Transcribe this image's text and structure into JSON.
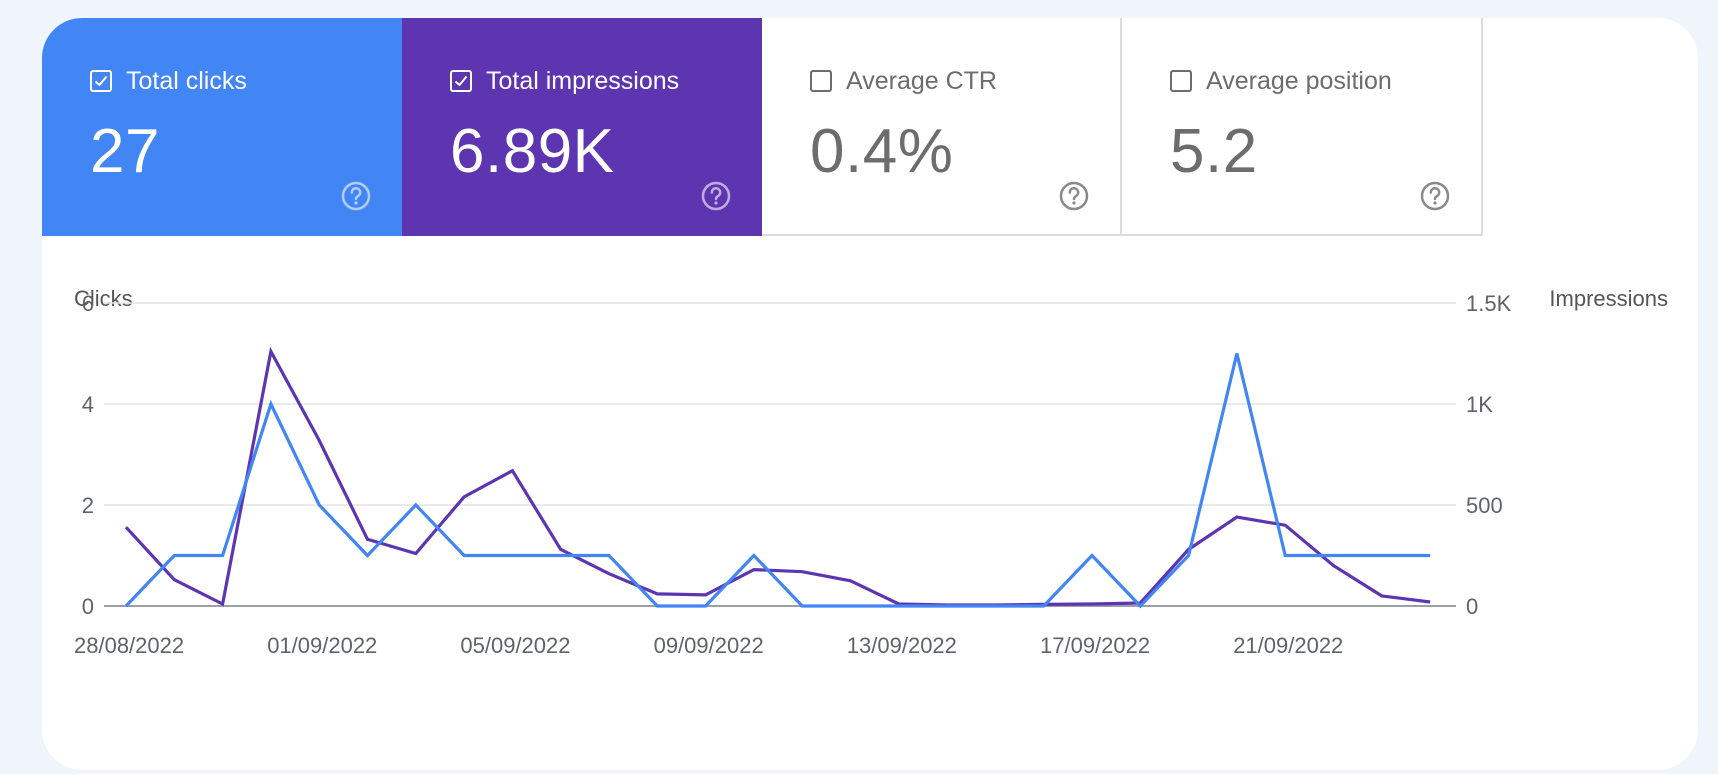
{
  "cards": [
    {
      "label": "Total clicks",
      "value": "27",
      "checked": true,
      "color": "#4285f4"
    },
    {
      "label": "Total impressions",
      "value": "6.89K",
      "checked": true,
      "color": "#5e35b1"
    },
    {
      "label": "Average CTR",
      "value": "0.4%",
      "checked": false,
      "color": "#ffffff"
    },
    {
      "label": "Average position",
      "value": "5.2",
      "checked": false,
      "color": "#ffffff"
    }
  ],
  "chart_data": {
    "type": "line",
    "left_axis_title": "Clicks",
    "right_axis_title": "Impressions",
    "left_ticks": [
      "0",
      "2",
      "4",
      "6"
    ],
    "right_ticks": [
      "0",
      "500",
      "1K",
      "1.5K"
    ],
    "ylim_left": [
      0,
      6
    ],
    "ylim_right": [
      0,
      1500
    ],
    "x_tick_labels": [
      "28/08/2022",
      "01/09/2022",
      "05/09/2022",
      "09/09/2022",
      "13/09/2022",
      "17/09/2022",
      "21/09/2022"
    ],
    "x": [
      "28/08/2022",
      "29/08/2022",
      "30/08/2022",
      "31/08/2022",
      "01/09/2022",
      "02/09/2022",
      "03/09/2022",
      "04/09/2022",
      "05/09/2022",
      "06/09/2022",
      "07/09/2022",
      "08/09/2022",
      "09/09/2022",
      "10/09/2022",
      "11/09/2022",
      "12/09/2022",
      "13/09/2022",
      "14/09/2022",
      "15/09/2022",
      "16/09/2022",
      "17/09/2022",
      "18/09/2022",
      "19/09/2022",
      "20/09/2022",
      "21/09/2022",
      "22/09/2022",
      "23/09/2022",
      "24/09/2022"
    ],
    "series": [
      {
        "name": "Clicks",
        "axis": "left",
        "color": "#4285f4",
        "values": [
          0,
          1,
          1,
          4,
          2,
          1,
          2,
          1,
          1,
          1,
          1,
          0,
          0,
          1,
          0,
          0,
          0,
          0,
          0,
          0,
          1,
          0,
          1,
          5,
          1,
          1,
          1,
          1
        ]
      },
      {
        "name": "Impressions",
        "axis": "right",
        "color": "#5e35b1",
        "values": [
          390,
          130,
          10,
          1260,
          820,
          330,
          260,
          540,
          670,
          280,
          160,
          60,
          55,
          180,
          170,
          125,
          10,
          5,
          5,
          8,
          10,
          15,
          280,
          440,
          400,
          200,
          50,
          20
        ]
      }
    ]
  }
}
